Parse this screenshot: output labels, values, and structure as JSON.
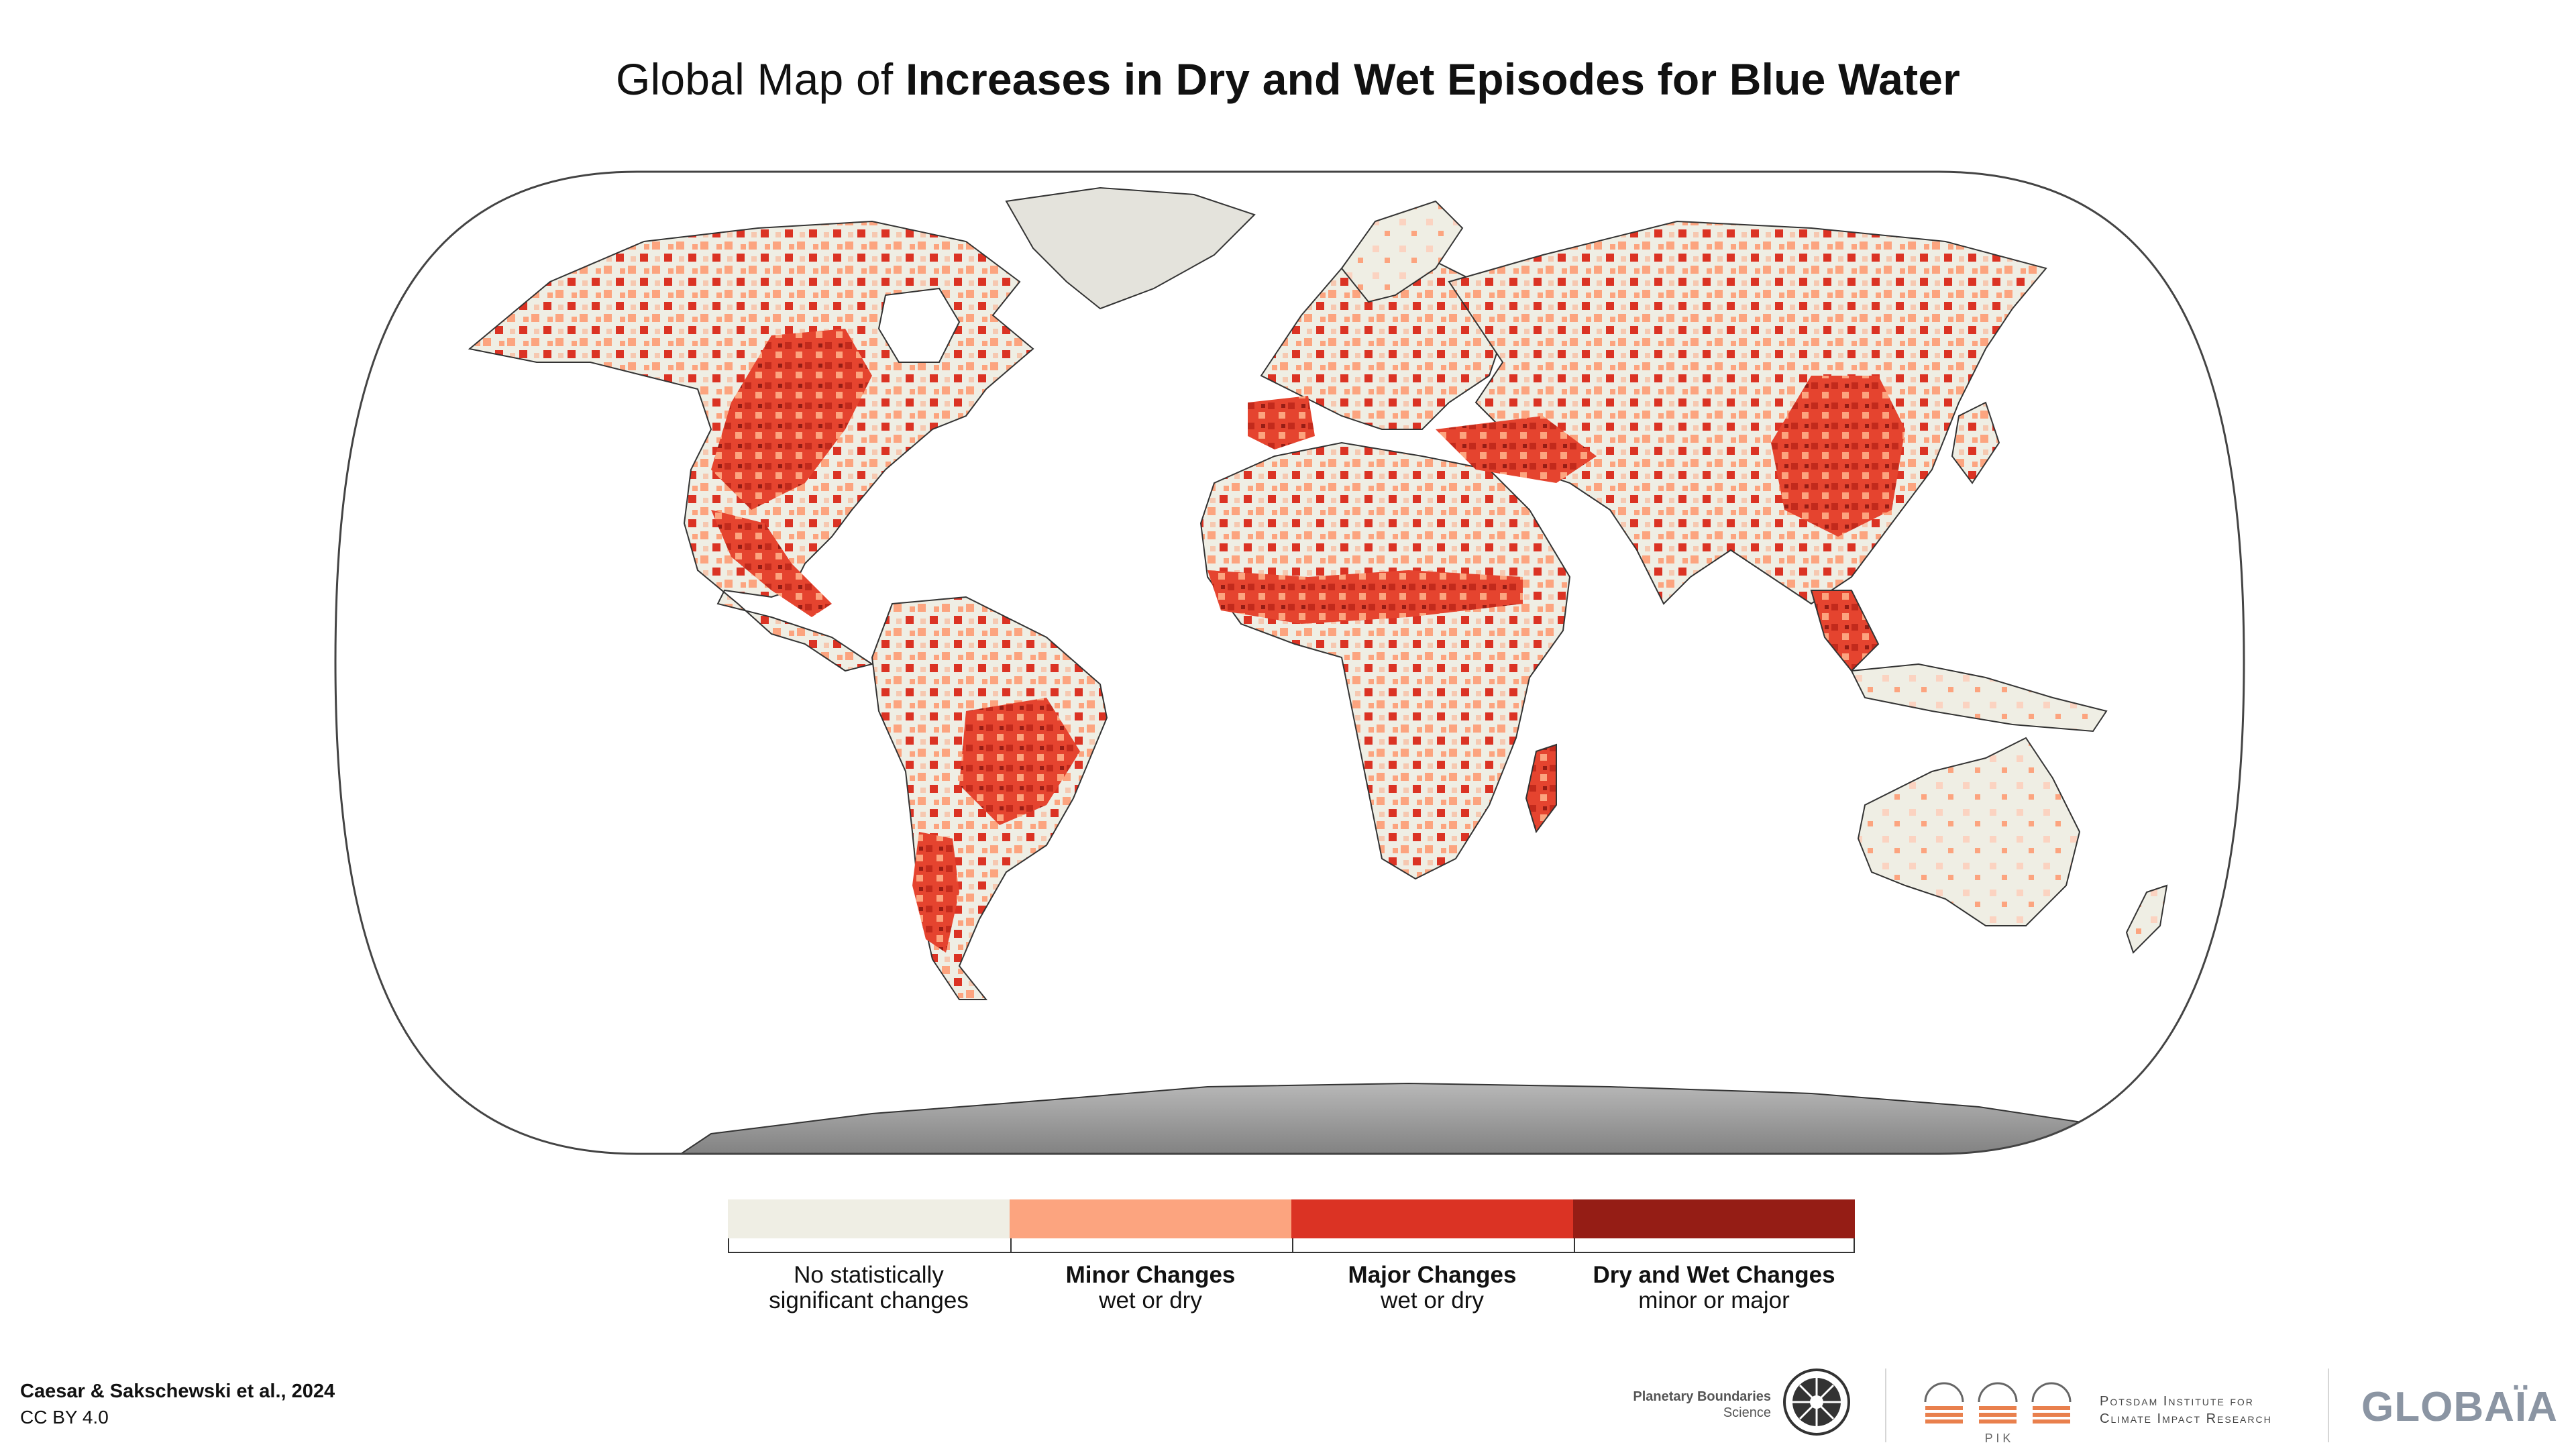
{
  "title": {
    "prefix": "Global Map of",
    "emphasis": "Increases in Dry and Wet Episodes for Blue Water"
  },
  "legend": {
    "categories": [
      {
        "line1": "No statistically",
        "line2": "significant changes",
        "color": "#efeee4",
        "bold": false
      },
      {
        "line1": "Minor Changes",
        "line2": "wet or dry",
        "color": "#fca47f",
        "bold": true
      },
      {
        "line1": "Major Changes",
        "line2": "wet or dry",
        "color": "#db3324",
        "bold": true
      },
      {
        "line1": "Dry and Wet Changes",
        "line2": "minor or major",
        "color": "#951d15",
        "bold": true
      }
    ]
  },
  "credit": {
    "citation": "Caesar & Sakschewski et al., 2024",
    "license": "CC BY 4.0"
  },
  "logos": {
    "pbs_line1": "Planetary Boundaries",
    "pbs_line2": "Science",
    "pik_letters": "P I K",
    "pik_line1": "Potsdam Institute for",
    "pik_line2": "Climate Impact Research",
    "globaia": "GLOBAÏA"
  },
  "colors": {
    "ocean": "#ffffff",
    "land_no_change": "#efeee4",
    "minor": "#fca47f",
    "major": "#db3324",
    "dry_wet": "#951d15",
    "ice": "#9c9c9c",
    "greenland": "#e4e3dc",
    "frame": "#444444"
  },
  "map": {
    "projection": "Equal Earth",
    "regions": [
      {
        "name": "North America",
        "level": "mixed"
      },
      {
        "name": "South America",
        "level": "mixed"
      },
      {
        "name": "Europe",
        "level": "mixed"
      },
      {
        "name": "Africa",
        "level": "mixed"
      },
      {
        "name": "Asia",
        "level": "mixed"
      },
      {
        "name": "Australia",
        "level": "mostly no change"
      },
      {
        "name": "Greenland",
        "level": "no data"
      },
      {
        "name": "Antarctica",
        "level": "ice"
      }
    ]
  }
}
